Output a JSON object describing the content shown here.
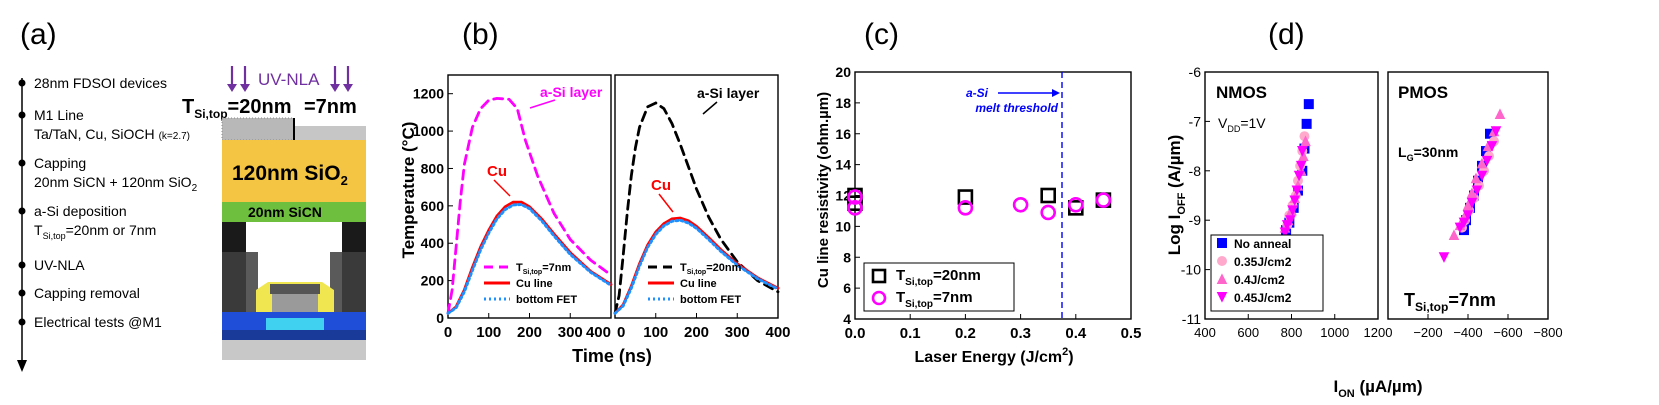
{
  "panels": {
    "a": {
      "letter": "(a)",
      "steps": [
        {
          "title": "28nm FDSOI devices",
          "detail": "",
          "detail2": ""
        },
        {
          "title": "M1 Line",
          "detail": "Ta/TaN, Cu, SiOCH",
          "detail2": "(k=2.7)"
        },
        {
          "title": "Capping",
          "detail": "20nm SiCN + 120nm SiO",
          "detail2": "2"
        },
        {
          "title": "a-Si deposition",
          "detail": "T",
          "detail2": "Si,top",
          "detail3": "=20nm or 7nm"
        },
        {
          "title": "UV-NLA",
          "detail": "",
          "detail2": ""
        },
        {
          "title": "Capping removal",
          "detail": "",
          "detail2": ""
        },
        {
          "title": "Electrical tests @M1",
          "detail": "",
          "detail2": ""
        }
      ],
      "stack": {
        "uv_label": "UV-NLA",
        "t_prefix": "T",
        "t_sub": "Si,top",
        "t_value1": "=20nm",
        "t_value2": "=7nm",
        "oxide_label": "120nm SiO",
        "oxide_sub": "2",
        "sicn_label": "20nm SiCN"
      },
      "colors": {
        "uv": "#7030a0",
        "oxide": "#f4c542",
        "sicn": "#6fbf3f",
        "asi": "#c8c8c8"
      }
    },
    "b": {
      "letter": "(b)"
    },
    "c": {
      "letter": "(c)"
    },
    "d": {
      "letter": "(d)"
    }
  },
  "chart_data": [
    {
      "id": "b-left",
      "type": "line",
      "ylabel": "Temperature (°C)",
      "xlabel": "Time (ns)",
      "xlim": [
        0,
        400
      ],
      "ylim": [
        0,
        1300
      ],
      "xticks": [
        0,
        100,
        200,
        300,
        400
      ],
      "yticks": [
        0,
        200,
        400,
        600,
        800,
        1000,
        1200
      ],
      "annotations": [
        {
          "text": "a-Si layer",
          "color": "#ff00ff"
        },
        {
          "text": "Cu",
          "color": "#ff0000"
        }
      ],
      "legend": {
        "t_prefix": "T",
        "t_sub": "Si,top",
        "t_suffix": "=7nm",
        "cu": "Cu line",
        "fet": "bottom FET"
      },
      "series": [
        {
          "name": "a-Si layer",
          "color": "#ff00ff",
          "dash": "dashed",
          "x": [
            0,
            10,
            20,
            30,
            40,
            60,
            80,
            100,
            120,
            150,
            170,
            190,
            220,
            260,
            300,
            350,
            400
          ],
          "y": [
            25,
            150,
            380,
            620,
            820,
            1020,
            1120,
            1165,
            1175,
            1170,
            1120,
            950,
            760,
            560,
            420,
            310,
            230
          ]
        },
        {
          "name": "Cu line",
          "color": "#ff0000",
          "dash": "solid",
          "x": [
            0,
            20,
            40,
            60,
            80,
            100,
            120,
            140,
            160,
            180,
            200,
            230,
            260,
            300,
            350,
            400
          ],
          "y": [
            25,
            60,
            150,
            270,
            380,
            470,
            545,
            595,
            620,
            620,
            595,
            530,
            450,
            350,
            250,
            180
          ]
        },
        {
          "name": "bottom FET",
          "color": "#1e90ff",
          "dash": "dotted",
          "x": [
            0,
            20,
            40,
            60,
            80,
            100,
            120,
            140,
            160,
            180,
            200,
            230,
            260,
            300,
            350,
            400
          ],
          "y": [
            25,
            55,
            140,
            255,
            365,
            455,
            530,
            580,
            605,
            607,
            585,
            520,
            440,
            340,
            245,
            175
          ]
        }
      ]
    },
    {
      "id": "b-right",
      "type": "line",
      "xlim": [
        0,
        400
      ],
      "ylim": [
        0,
        1300
      ],
      "xticks": [
        0,
        100,
        200,
        300,
        400
      ],
      "annotations": [
        {
          "text": "a-Si layer",
          "color": "#000000"
        },
        {
          "text": "Cu",
          "color": "#ff0000"
        }
      ],
      "legend": {
        "t_prefix": "T",
        "t_sub": "Si,top",
        "t_suffix": "=20nm",
        "cu": "Cu line",
        "fet": "bottom FET"
      },
      "series": [
        {
          "name": "a-Si layer",
          "color": "#000000",
          "dash": "dashed",
          "x": [
            0,
            10,
            20,
            30,
            40,
            50,
            60,
            80,
            100,
            120,
            140,
            160,
            180,
            200,
            230,
            260,
            300,
            350,
            400
          ],
          "y": [
            25,
            120,
            330,
            560,
            760,
            910,
            1020,
            1130,
            1150,
            1120,
            1040,
            930,
            810,
            690,
            540,
            420,
            300,
            200,
            140
          ]
        },
        {
          "name": "Cu line",
          "color": "#ff0000",
          "dash": "solid",
          "x": [
            0,
            20,
            40,
            60,
            80,
            100,
            120,
            140,
            160,
            180,
            200,
            230,
            260,
            300,
            350,
            400
          ],
          "y": [
            25,
            70,
            170,
            290,
            390,
            460,
            505,
            530,
            535,
            520,
            490,
            430,
            365,
            290,
            215,
            160
          ]
        },
        {
          "name": "bottom FET",
          "color": "#1e90ff",
          "dash": "dotted",
          "x": [
            0,
            20,
            40,
            60,
            80,
            100,
            120,
            140,
            160,
            180,
            200,
            230,
            260,
            300,
            350,
            400
          ],
          "y": [
            25,
            65,
            160,
            278,
            378,
            448,
            493,
            518,
            523,
            508,
            480,
            420,
            356,
            283,
            210,
            155
          ]
        }
      ]
    },
    {
      "id": "c",
      "type": "scatter",
      "ylabel": "Cu line resistivity (ohm.µm)",
      "xlabel_main": "Laser Energy (J/cm",
      "xlabel_sup": "2",
      "xlabel_end": ")",
      "xlim": [
        0.0,
        0.5
      ],
      "ylim": [
        4,
        20
      ],
      "xticks": [
        0.0,
        0.1,
        0.2,
        0.3,
        0.4,
        0.5
      ],
      "yticks": [
        4,
        6,
        8,
        10,
        12,
        14,
        16,
        18,
        20
      ],
      "threshold": {
        "x": 0.375,
        "line1": "a-Si",
        "line2": "melt threshold",
        "color": "#0000ff"
      },
      "legend": [
        {
          "t_prefix": "T",
          "t_sub": "Si,top",
          "t_suffix": "=20nm"
        },
        {
          "t_prefix": "T",
          "t_sub": "Si,top",
          "t_suffix": "=7nm"
        }
      ],
      "series": [
        {
          "name": "TSi,top=20nm",
          "marker": "square",
          "color": "#000000",
          "x": [
            0.0,
            0.0,
            0.2,
            0.35,
            0.4,
            0.45
          ],
          "y": [
            12.0,
            11.5,
            11.9,
            12.0,
            11.2,
            11.7
          ]
        },
        {
          "name": "TSi,top=7nm",
          "marker": "circle",
          "color": "#ff00ff",
          "x": [
            0.0,
            0.0,
            0.2,
            0.3,
            0.35,
            0.4,
            0.45
          ],
          "y": [
            11.9,
            11.2,
            11.2,
            11.4,
            10.9,
            11.4,
            11.7
          ]
        }
      ]
    },
    {
      "id": "d-nmos",
      "type": "scatter",
      "ylabel_main": "Log I",
      "ylabel_sub": "OFF",
      "ylabel_end": " (A/µm)",
      "xlim": [
        400,
        1200
      ],
      "ylim": [
        -11,
        -6
      ],
      "xticks": [
        400,
        600,
        800,
        1000,
        1200
      ],
      "yticks": [
        -11,
        -10,
        -9,
        -8,
        -7,
        -6
      ],
      "title": "NMOS",
      "vdd_prefix": "V",
      "vdd_sub": "DD",
      "vdd_suffix": "=1V",
      "legend": [
        "No anneal",
        "0.35J/cm2",
        "0.4J/cm2",
        "0.45J/cm2"
      ],
      "series": [
        {
          "name": "No anneal",
          "marker": "square",
          "color": "#0000ff",
          "x": [
            880,
            870,
            860,
            850,
            830,
            810,
            790,
            775
          ],
          "y": [
            -6.65,
            -7.05,
            -7.55,
            -8.0,
            -8.4,
            -8.75,
            -9.05,
            -9.2
          ]
        },
        {
          "name": "0.35J/cm2",
          "marker": "circle",
          "color": "#ffaacc",
          "x": [
            860,
            850,
            840,
            830,
            820,
            805,
            790,
            780
          ],
          "y": [
            -7.3,
            -7.6,
            -7.9,
            -8.2,
            -8.5,
            -8.7,
            -8.9,
            -9.1
          ]
        },
        {
          "name": "0.4J/cm2",
          "marker": "triangle",
          "color": "#ff66cc",
          "x": [
            865,
            855,
            845,
            830,
            815,
            800,
            785,
            770
          ],
          "y": [
            -7.4,
            -7.7,
            -8.0,
            -8.3,
            -8.55,
            -8.8,
            -9.0,
            -9.15
          ]
        },
        {
          "name": "0.45J/cm2",
          "marker": "triangle-down",
          "color": "#ff00ff",
          "x": [
            850,
            845,
            835,
            825,
            815,
            805,
            795,
            780,
            770
          ],
          "y": [
            -7.6,
            -7.9,
            -8.1,
            -8.4,
            -8.6,
            -8.8,
            -9.0,
            -9.1,
            -9.25
          ]
        }
      ]
    },
    {
      "id": "d-pmos",
      "type": "scatter",
      "xlabel_main": "I",
      "xlabel_sub": "ON",
      "xlabel_end": " (µA/µm)",
      "xlim": [
        0,
        -800
      ],
      "ylim": [
        -11,
        -6
      ],
      "xticks": [
        -200,
        -400,
        -600,
        -800
      ],
      "xticklabels": [
        "−200",
        "−400",
        "−600",
        "−800"
      ],
      "title": "PMOS",
      "lg_prefix": "L",
      "lg_sub": "G",
      "lg_suffix": "=30nm",
      "tsi_prefix": "T",
      "tsi_sub": "Si,top",
      "tsi_suffix": "=7nm",
      "series": [
        {
          "name": "No anneal",
          "marker": "square",
          "color": "#0000ff",
          "x": [
            -510,
            -490,
            -470,
            -450,
            -430,
            -410,
            -390,
            -380
          ],
          "y": [
            -7.25,
            -7.6,
            -7.9,
            -8.2,
            -8.5,
            -8.75,
            -9.0,
            -9.2
          ]
        },
        {
          "name": "0.35J/cm2",
          "marker": "circle",
          "color": "#ffaacc",
          "x": [
            -530,
            -505,
            -480,
            -455,
            -430,
            -405,
            -385,
            -370
          ],
          "y": [
            -7.4,
            -7.7,
            -8.0,
            -8.3,
            -8.55,
            -8.8,
            -9.0,
            -9.15
          ]
        },
        {
          "name": "0.4J/cm2",
          "marker": "triangle",
          "color": "#ff66cc",
          "x": [
            -560,
            -530,
            -500,
            -470,
            -440,
            -420,
            -400,
            -380,
            -360,
            -330
          ],
          "y": [
            -6.85,
            -7.2,
            -7.5,
            -7.85,
            -8.15,
            -8.45,
            -8.7,
            -8.95,
            -9.1,
            -9.3
          ]
        },
        {
          "name": "0.45J/cm2",
          "marker": "triangle-down",
          "color": "#ff00ff",
          "x": [
            -540,
            -520,
            -495,
            -470,
            -445,
            -420,
            -400,
            -380,
            -360,
            -280
          ],
          "y": [
            -7.2,
            -7.5,
            -7.8,
            -8.1,
            -8.4,
            -8.65,
            -8.9,
            -9.05,
            -9.15,
            -9.75
          ]
        }
      ]
    }
  ]
}
